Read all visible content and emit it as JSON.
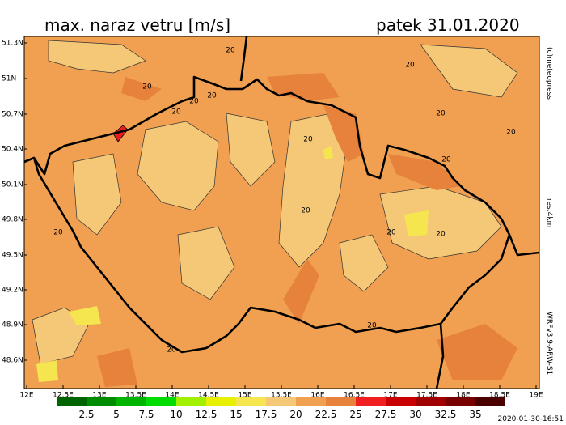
{
  "header": {
    "title": "max. naraz vetru [m/s]",
    "date": "patek 31.01.2020"
  },
  "map": {
    "lat_labels": [
      "51.3N",
      "51N",
      "50.7N",
      "50.4N",
      "50.1N",
      "49.8N",
      "49.5N",
      "49.2N",
      "48.9N",
      "48.6N"
    ],
    "lon_labels": [
      "12E",
      "12.5E",
      "13E",
      "13.5E",
      "14E",
      "14.5E",
      "15E",
      "15.5E",
      "16E",
      "16.5E",
      "17E",
      "17.5E",
      "18E",
      "18.5E",
      "19E"
    ],
    "contour_labels": [
      "20",
      "20",
      "20",
      "20",
      "20",
      "20",
      "20",
      "20",
      "20",
      "20",
      "20",
      "20",
      "20",
      "20",
      "20",
      "20"
    ]
  },
  "side": {
    "credit": "(c)meteopress",
    "resolution": "res.4km",
    "model": "WRFv3.9-ARW-S1"
  },
  "legend": {
    "colors": [
      "#006400",
      "#008c00",
      "#00b400",
      "#00dc00",
      "#a0f000",
      "#e6f000",
      "#f5e650",
      "#f5c878",
      "#f0a050",
      "#e6823c",
      "#f01e1e",
      "#c80000",
      "#a00000",
      "#780000",
      "#4b0000"
    ],
    "labels": [
      "2.5",
      "5",
      "7.5",
      "10",
      "12.5",
      "15",
      "17.5",
      "20",
      "22.5",
      "25",
      "27.5",
      "30",
      "32.5",
      "35"
    ]
  },
  "timestamp": "2020-01-30-16:51"
}
